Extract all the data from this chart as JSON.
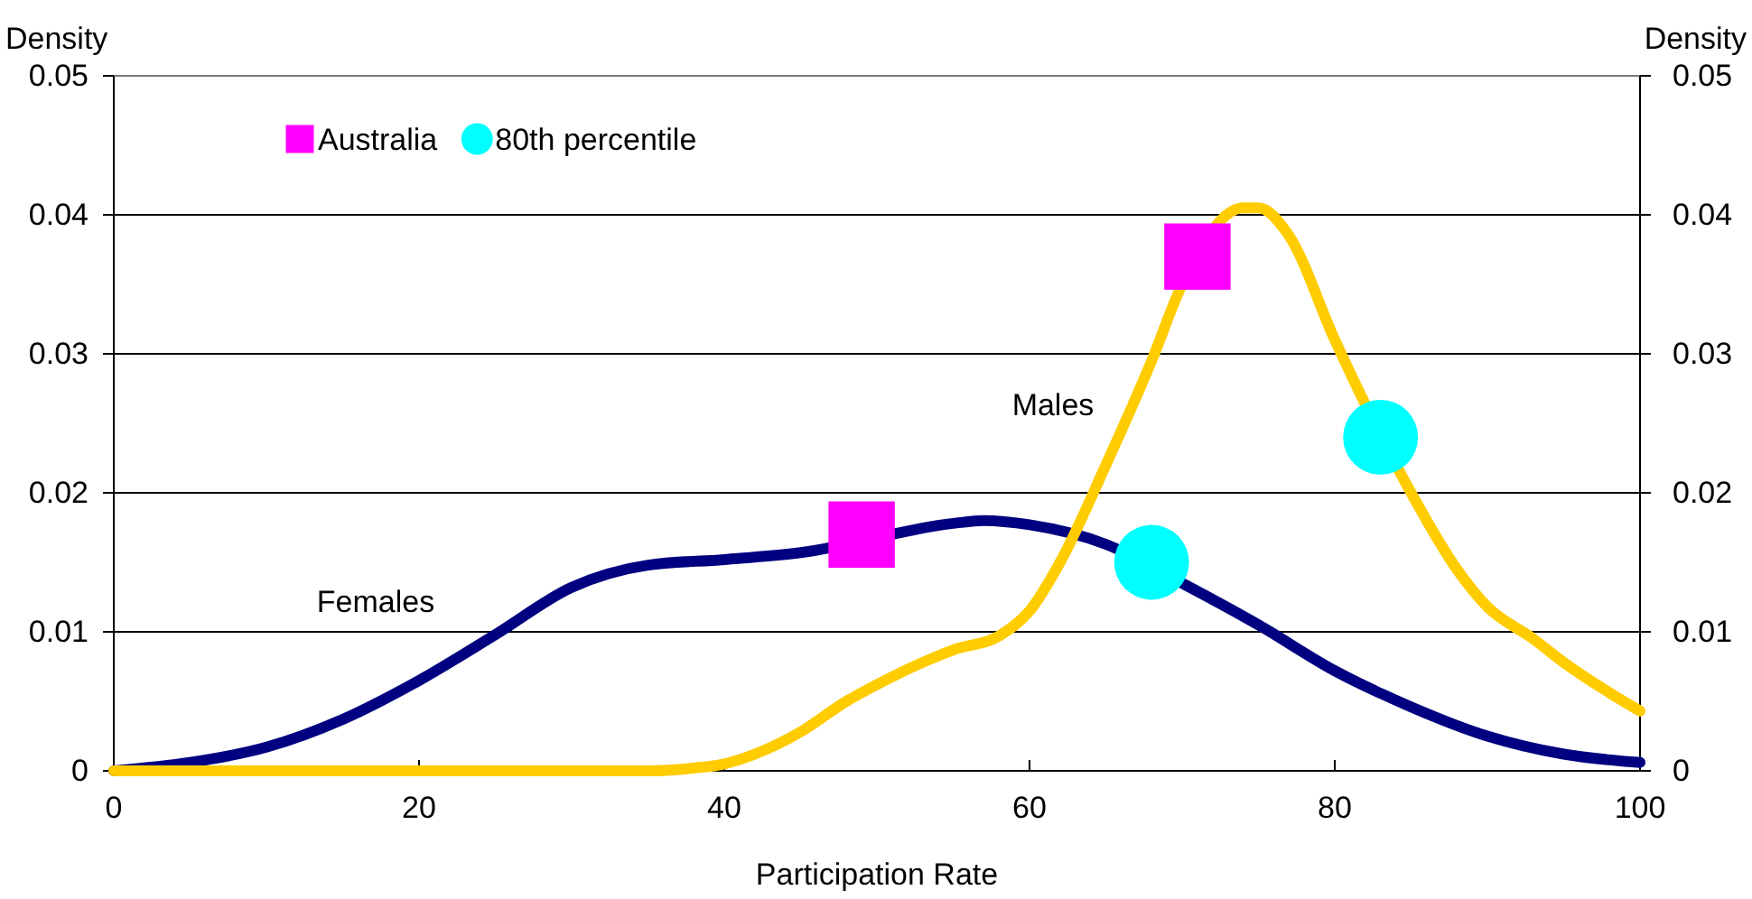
{
  "chart_data": {
    "type": "line",
    "xlabel": "Participation Rate",
    "ylabel": "Density",
    "y2label": "Density",
    "xlim": [
      0,
      100
    ],
    "xticks": [
      0,
      20,
      40,
      60,
      80,
      100
    ],
    "ylim": [
      0,
      0.05
    ],
    "yticks": [
      0,
      0.01,
      0.02,
      0.03,
      0.04,
      0.05
    ],
    "y2lim": [
      0,
      0.05
    ],
    "y2ticks": [
      0,
      0.01,
      0.02,
      0.03,
      0.04,
      0.05
    ],
    "grid": "y",
    "legend": "top left",
    "line_style": "solid",
    "series": [
      {
        "color": "#000080",
        "marker": "none",
        "x": [
          0,
          5,
          10,
          15,
          20,
          25,
          30,
          35,
          40,
          45,
          55,
          57,
          60,
          65,
          70,
          75,
          80,
          85,
          90,
          95,
          100
        ],
        "values": [
          0,
          0.0006,
          0.0017,
          0.0037,
          0.0065,
          0.0098,
          0.0132,
          0.0148,
          0.0152,
          0.0157,
          0.0178,
          0.018,
          0.0177,
          0.0163,
          0.0135,
          0.0105,
          0.0072,
          0.0046,
          0.0025,
          0.0012,
          0.0006
        ]
      },
      {
        "color": "#ffcc00",
        "marker": "none",
        "x": [
          0,
          10,
          20,
          30,
          35,
          38,
          40,
          42,
          45,
          48,
          50,
          53,
          55,
          58,
          60,
          62,
          65,
          68,
          70,
          74,
          75,
          77,
          80,
          85,
          88,
          90,
          93,
          95,
          100
        ],
        "values": [
          0,
          0,
          0,
          0,
          0,
          0.0002,
          0.0005,
          0.0012,
          0.0028,
          0.005,
          0.0062,
          0.0078,
          0.0087,
          0.0097,
          0.0115,
          0.015,
          0.022,
          0.0295,
          0.035,
          0.0405,
          0.0405,
          0.0385,
          0.031,
          0.02,
          0.0145,
          0.0118,
          0.0095,
          0.0078,
          0.0043
        ]
      },
      {
        "type": "scatter",
        "name": "Australia",
        "color": "#ff00ff",
        "marker": "square",
        "x": [
          49,
          71
        ],
        "values": [
          0.017,
          0.037
        ]
      },
      {
        "type": "scatter",
        "name": "80th percentile",
        "color": "#00ffff",
        "marker": "circle",
        "x": [
          68,
          83
        ],
        "values": [
          0.015,
          0.024
        ]
      }
    ],
    "annotations": [
      "Females",
      "Males"
    ]
  }
}
